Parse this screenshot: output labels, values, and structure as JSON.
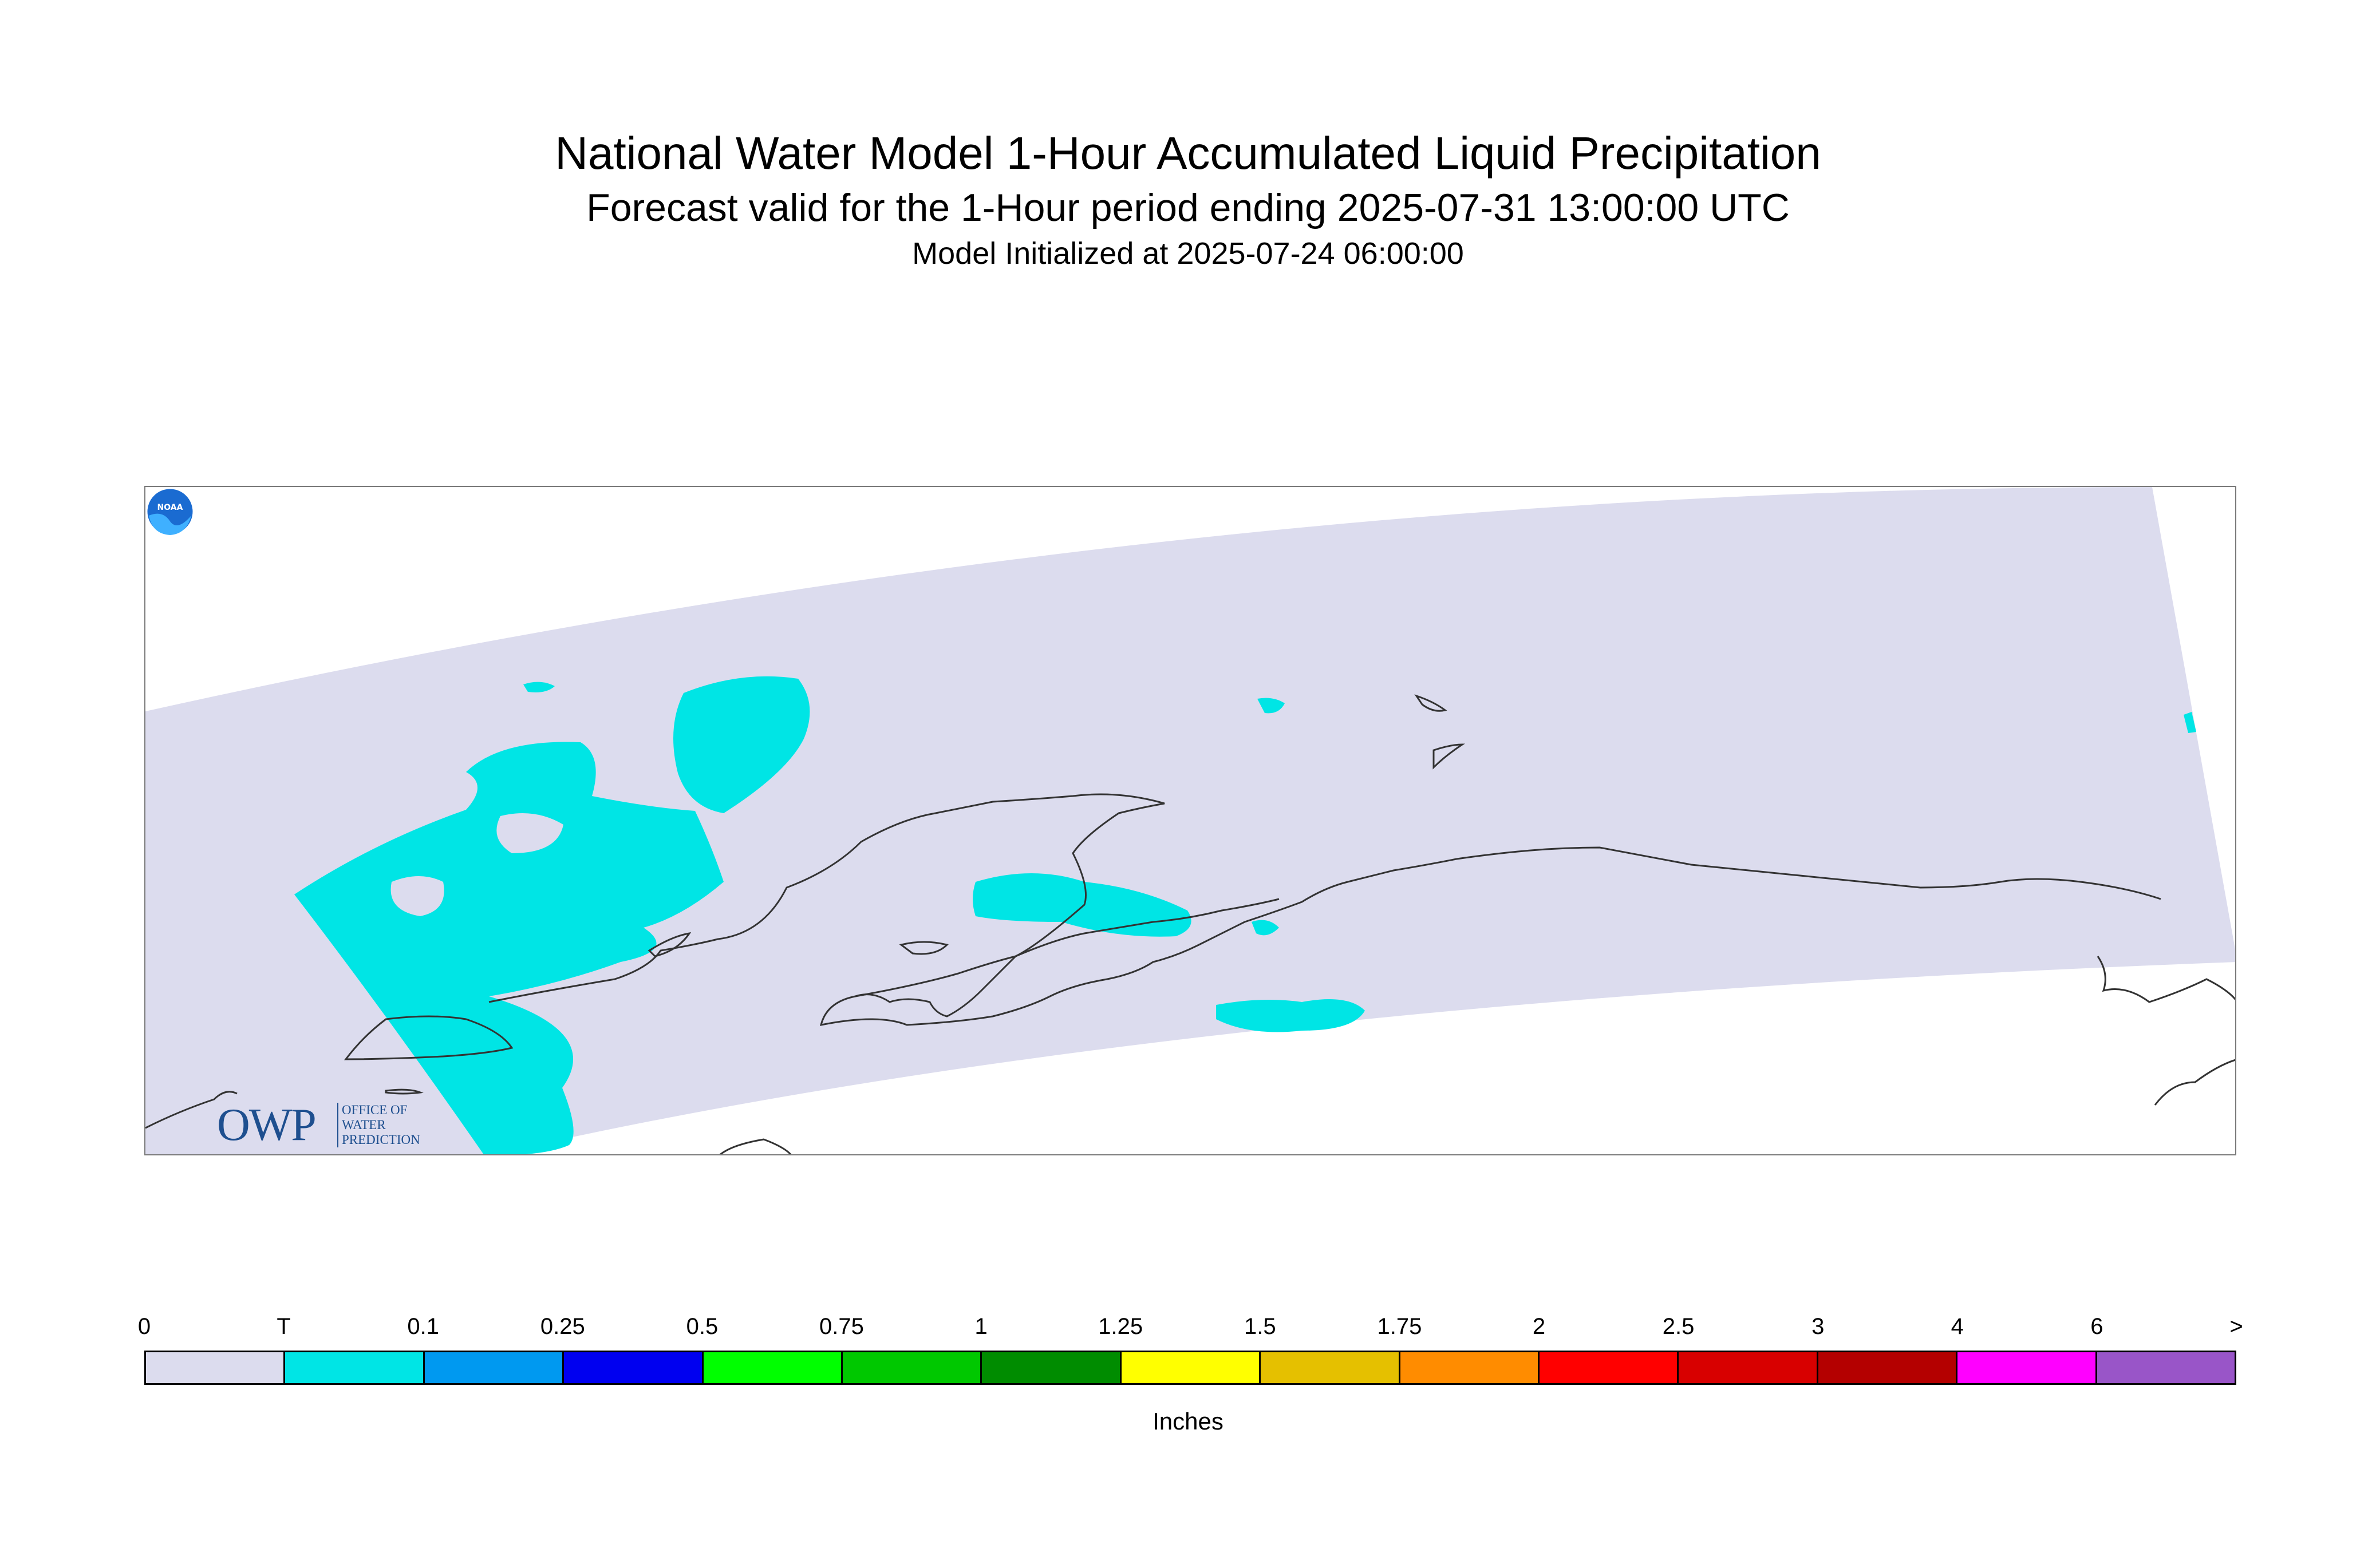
{
  "title": "National Water Model 1-Hour Accumulated Liquid Precipitation",
  "subtitle": "Forecast valid for the 1-Hour period ending 2025-07-31 13:00:00 UTC",
  "init_text": "Model Initialized at 2025-07-24 06:00:00",
  "logos": {
    "owp_text": "OWP",
    "owp_sub": "OFFICE OF WATER PREDICTION",
    "noaa_text": "NOAA"
  },
  "colors": {
    "domain": "#dcdcee",
    "precip": "#00e5e5",
    "coast": "#333333"
  },
  "legend": {
    "ticks": [
      "0",
      "T",
      "0.1",
      "0.25",
      "0.5",
      "0.75",
      "1",
      "1.25",
      "1.5",
      "1.75",
      "2",
      "2.5",
      "3",
      "4",
      "6",
      ">"
    ],
    "colors": [
      "#dcdcee",
      "#00e5e5",
      "#0099f0",
      "#0000f0",
      "#00ff00",
      "#00c800",
      "#008c00",
      "#ffff00",
      "#e5c000",
      "#ff8c00",
      "#ff0000",
      "#d80000",
      "#b40000",
      "#ff00ff",
      "#9955c8"
    ],
    "units": "Inches"
  }
}
